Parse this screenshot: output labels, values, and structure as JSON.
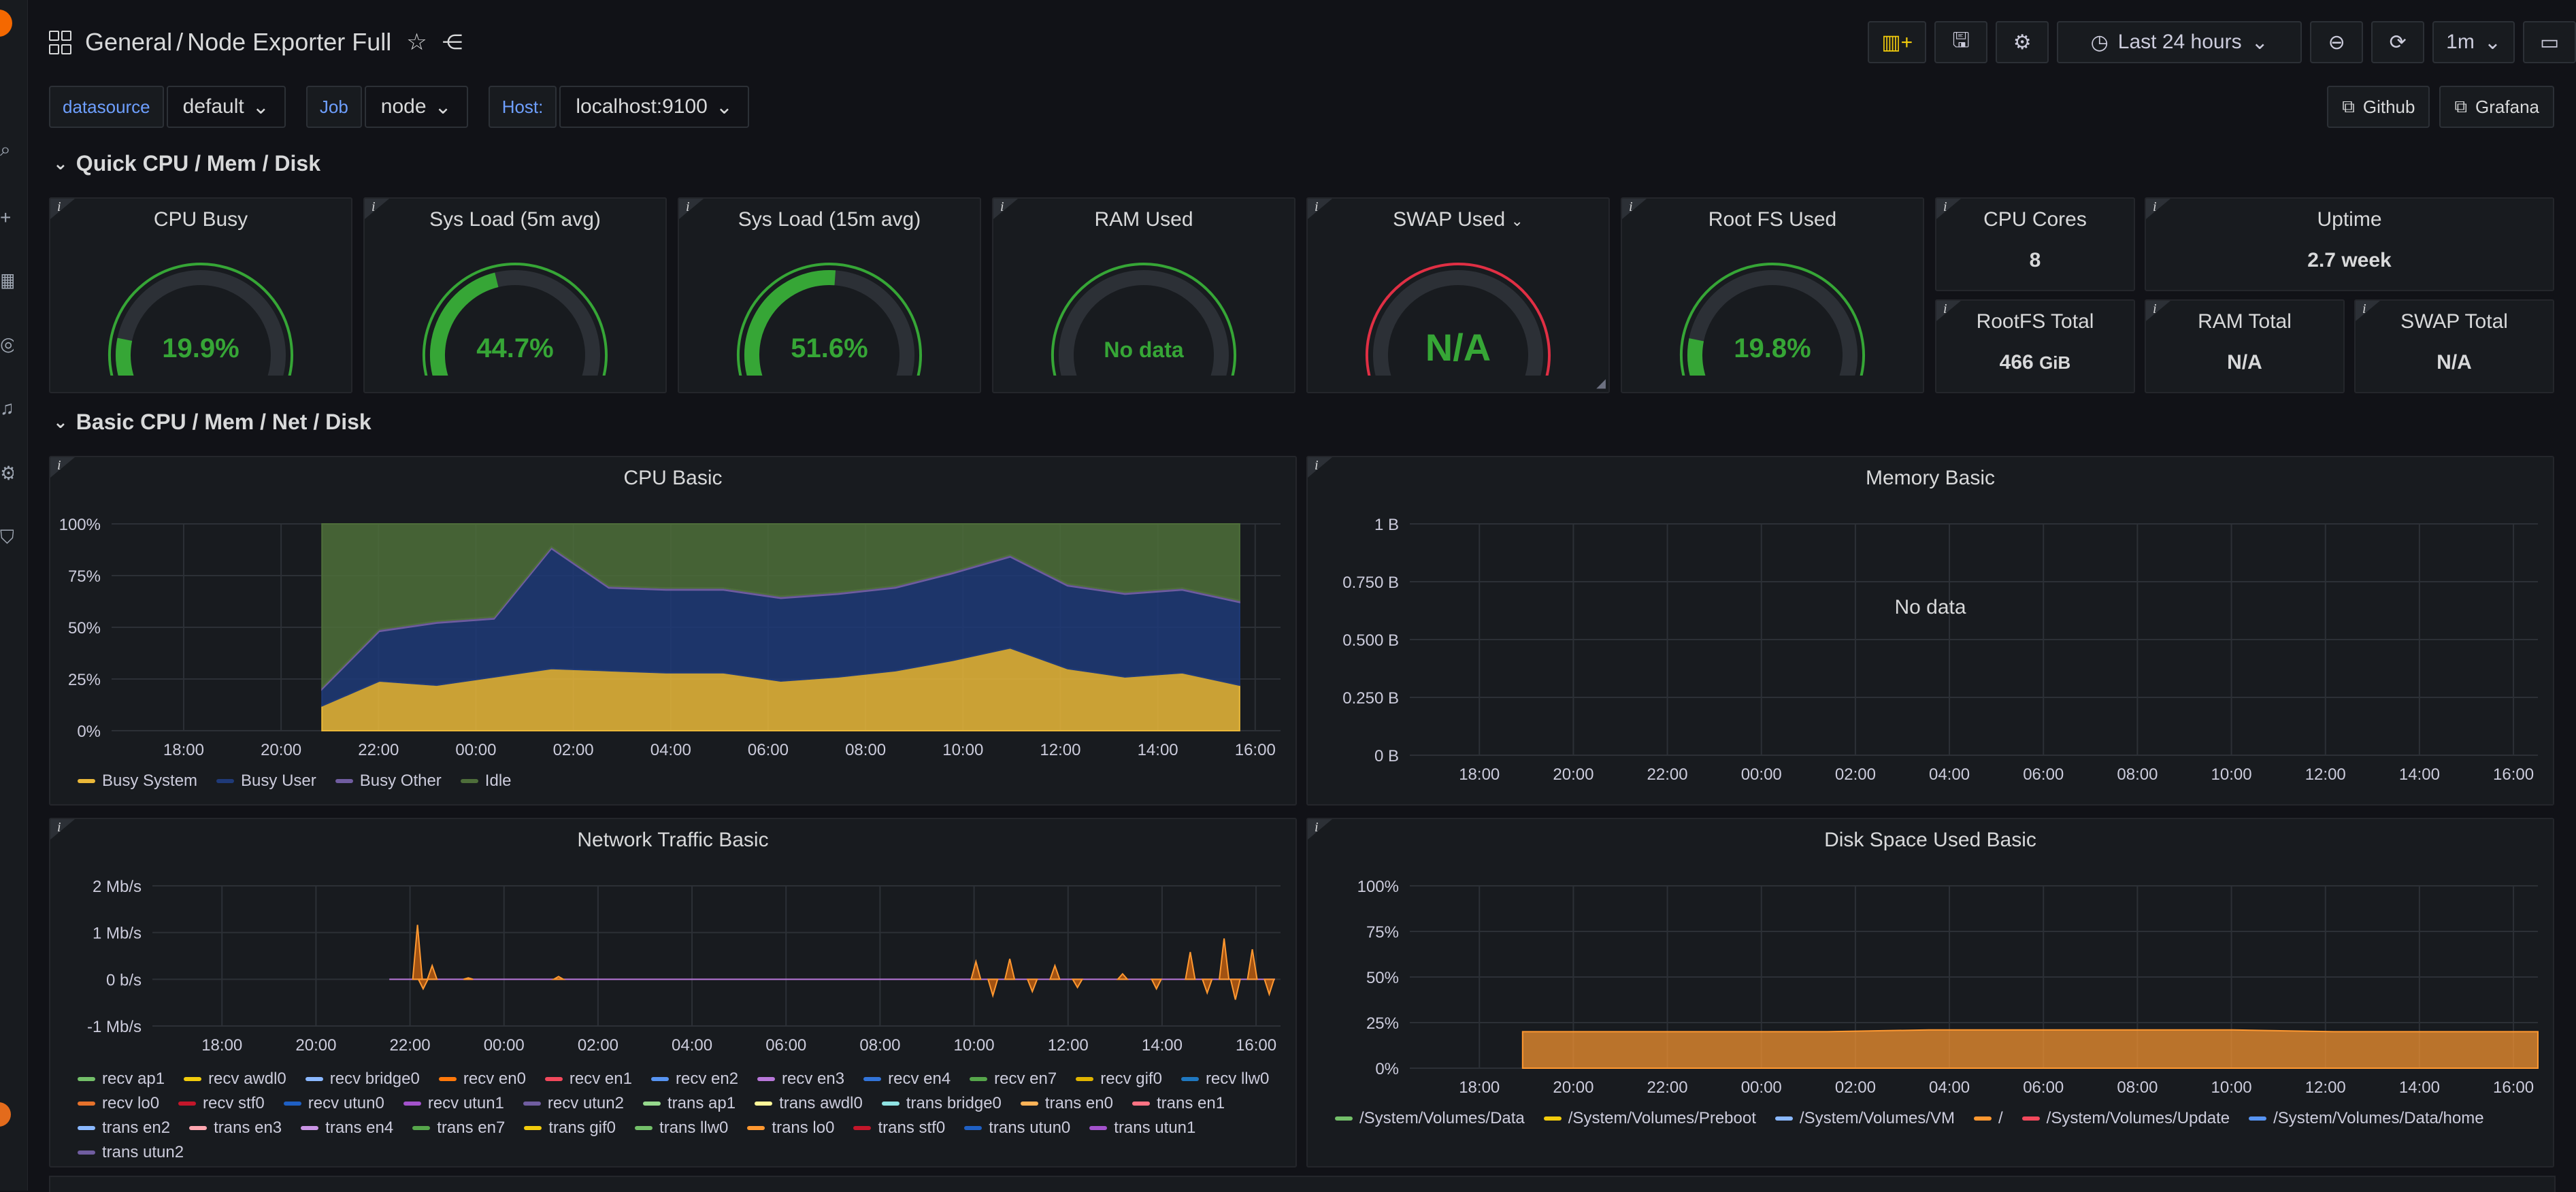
{
  "header": {
    "folder": "General",
    "dashboard": "Node Exporter Full",
    "time_range": "Last 24 hours",
    "refresh": "1m"
  },
  "variables": [
    {
      "label": "datasource",
      "value": "default"
    },
    {
      "label": "Job",
      "value": "node"
    },
    {
      "label": "Host:",
      "value": "localhost:9100"
    }
  ],
  "links": [
    {
      "label": "Github"
    },
    {
      "label": "Grafana"
    }
  ],
  "rows": {
    "quick": "Quick CPU / Mem / Disk",
    "basic": "Basic CPU / Mem / Net / Disk"
  },
  "gauges": [
    {
      "title": "CPU Busy",
      "value": "19.9%",
      "pct": 0.199
    },
    {
      "title": "Sys Load (5m avg)",
      "value": "44.7%",
      "pct": 0.447
    },
    {
      "title": "Sys Load (15m avg)",
      "value": "51.6%",
      "pct": 0.516
    },
    {
      "title": "RAM Used",
      "value": "No data",
      "pct": 0
    },
    {
      "title": "SWAP Used",
      "value": "N/A",
      "pct": 0
    },
    {
      "title": "Root FS Used",
      "value": "19.8%",
      "pct": 0.198
    }
  ],
  "stats": {
    "cpu_cores": {
      "title": "CPU Cores",
      "value": "8"
    },
    "uptime": {
      "title": "Uptime",
      "value": "2.7 week"
    },
    "rootfs_total": {
      "title": "RootFS Total",
      "value": "466",
      "unit": "GiB"
    },
    "ram_total": {
      "title": "RAM Total",
      "value": "N/A"
    },
    "swap_total": {
      "title": "SWAP Total",
      "value": "N/A"
    }
  },
  "chart_data": [
    {
      "type": "area",
      "title": "CPU Basic",
      "x_ticks": [
        "18:00",
        "20:00",
        "22:00",
        "00:00",
        "02:00",
        "04:00",
        "06:00",
        "08:00",
        "10:00",
        "12:00",
        "14:00",
        "16:00"
      ],
      "y_ticks": [
        "100%",
        "75%",
        "50%",
        "25%",
        "0%"
      ],
      "ylim": [
        0,
        100
      ],
      "stacked": true,
      "series": [
        {
          "name": "Busy System",
          "color": "#eab839",
          "values": [
            12,
            24,
            22,
            26,
            30,
            29,
            28,
            28,
            24,
            26,
            29,
            34,
            40,
            30,
            26,
            28,
            22
          ]
        },
        {
          "name": "Busy User",
          "color": "#1f3a78",
          "values": [
            8,
            24,
            30,
            28,
            58,
            40,
            40,
            40,
            40,
            40,
            40,
            42,
            44,
            40,
            40,
            40,
            40
          ]
        },
        {
          "name": "Busy Other",
          "color": "#705da0",
          "values": [
            1,
            1,
            1,
            1,
            1,
            1,
            1,
            1,
            1,
            1,
            1,
            1,
            1,
            1,
            1,
            1,
            1
          ]
        },
        {
          "name": "Idle",
          "color": "#4e6e3a",
          "values": [
            79,
            51,
            47,
            45,
            11,
            30,
            31,
            31,
            35,
            33,
            30,
            23,
            15,
            29,
            33,
            31,
            37
          ]
        }
      ]
    },
    {
      "type": "line",
      "title": "Memory Basic",
      "x_ticks": [
        "18:00",
        "20:00",
        "22:00",
        "00:00",
        "02:00",
        "04:00",
        "06:00",
        "08:00",
        "10:00",
        "12:00",
        "14:00",
        "16:00"
      ],
      "y_ticks": [
        "1 B",
        "0.750 B",
        "0.500 B",
        "0.250 B",
        "0 B"
      ],
      "no_data": "No data",
      "series": []
    },
    {
      "type": "line",
      "title": "Network Traffic Basic",
      "x_ticks": [
        "18:00",
        "20:00",
        "22:00",
        "00:00",
        "02:00",
        "04:00",
        "06:00",
        "08:00",
        "10:00",
        "12:00",
        "14:00",
        "16:00"
      ],
      "y_ticks": [
        "2 Mb/s",
        "1 Mb/s",
        "0 b/s",
        "-1 Mb/s"
      ],
      "series": [
        {
          "name": "recv ap1",
          "color": "#73bf69"
        },
        {
          "name": "recv awdl0",
          "color": "#f2cc0c"
        },
        {
          "name": "recv bridge0",
          "color": "#8ab8ff"
        },
        {
          "name": "recv en0",
          "color": "#ff780a"
        },
        {
          "name": "recv en1",
          "color": "#f2495c"
        },
        {
          "name": "recv en2",
          "color": "#5794f2"
        },
        {
          "name": "recv en3",
          "color": "#b877d9"
        },
        {
          "name": "recv en4",
          "color": "#3274d9"
        },
        {
          "name": "recv en7",
          "color": "#56a64b"
        },
        {
          "name": "recv gif0",
          "color": "#e0b400"
        },
        {
          "name": "recv llw0",
          "color": "#1f78c1"
        },
        {
          "name": "recv lo0",
          "color": "#e6722b"
        },
        {
          "name": "recv stf0",
          "color": "#c4162a"
        },
        {
          "name": "recv utun0",
          "color": "#1f60c4"
        },
        {
          "name": "recv utun1",
          "color": "#a352cc"
        },
        {
          "name": "recv utun2",
          "color": "#705da0"
        },
        {
          "name": "trans ap1",
          "color": "#96d98d"
        },
        {
          "name": "trans awdl0",
          "color": "#fff899"
        },
        {
          "name": "trans bridge0",
          "color": "#8fe3e3"
        },
        {
          "name": "trans en0",
          "color": "#ffb357"
        },
        {
          "name": "trans en1",
          "color": "#ff7383"
        },
        {
          "name": "trans en2",
          "color": "#8ab8ff"
        },
        {
          "name": "trans en3",
          "color": "#ffa6b0"
        },
        {
          "name": "trans en4",
          "color": "#ca95e5"
        },
        {
          "name": "trans en7",
          "color": "#56a64b"
        },
        {
          "name": "trans gif0",
          "color": "#f2cc0c"
        },
        {
          "name": "trans llw0",
          "color": "#73bf69"
        },
        {
          "name": "trans lo0",
          "color": "#ff9830"
        },
        {
          "name": "trans stf0",
          "color": "#c4162a"
        },
        {
          "name": "trans utun0",
          "color": "#1f60c4"
        },
        {
          "name": "trans utun1",
          "color": "#a352cc"
        },
        {
          "name": "trans utun2",
          "color": "#705da0"
        }
      ]
    },
    {
      "type": "area",
      "title": "Disk Space Used Basic",
      "x_ticks": [
        "18:00",
        "20:00",
        "22:00",
        "00:00",
        "02:00",
        "04:00",
        "06:00",
        "08:00",
        "10:00",
        "12:00",
        "14:00",
        "16:00"
      ],
      "y_ticks": [
        "100%",
        "75%",
        "50%",
        "25%",
        "0%"
      ],
      "ylim": [
        0,
        100
      ],
      "series": [
        {
          "name": "/System/Volumes/Data",
          "color": "#73bf69"
        },
        {
          "name": "/System/Volumes/Preboot",
          "color": "#f2cc0c"
        },
        {
          "name": "/System/Volumes/VM",
          "color": "#8ab8ff"
        },
        {
          "name": "/",
          "color": "#ff9830",
          "values": [
            20,
            20,
            20,
            20,
            21,
            21,
            21,
            21,
            20,
            20,
            20
          ]
        },
        {
          "name": "/System/Volumes/Update",
          "color": "#f2495c"
        },
        {
          "name": "/System/Volumes/Data/home",
          "color": "#5794f2"
        }
      ]
    }
  ]
}
